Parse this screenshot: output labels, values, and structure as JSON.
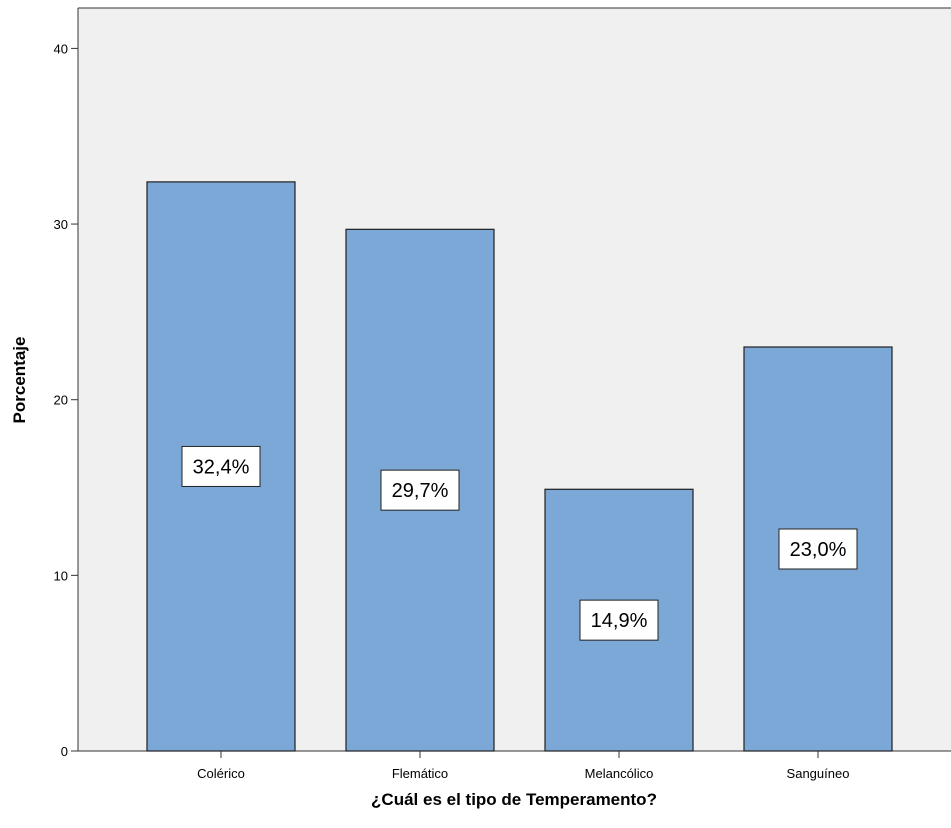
{
  "chart_data": {
    "type": "bar",
    "title": "",
    "xlabel": "¿Cuál es el tipo de Temperamento?",
    "ylabel": "Porcentaje",
    "categories": [
      "Colérico",
      "Flemático",
      "Melancólico",
      "Sanguíneo"
    ],
    "values": [
      32.4,
      29.7,
      14.9,
      23.0
    ],
    "data_labels": [
      "32,4%",
      "29,7%",
      "14,9%",
      "23,0%"
    ],
    "yticks": [
      "0",
      "10",
      "20",
      "30",
      "40"
    ],
    "ytick_values": [
      0,
      10,
      20,
      30,
      40
    ],
    "ylim": [
      0,
      42.3
    ],
    "grid": false,
    "legend": "none",
    "colors": {
      "bar_fill": "#7BA8D6",
      "bar_stroke": "#1F1F1F",
      "plot_bg": "#F0F0F0",
      "axis": "#333333",
      "label_box_bg": "#FFFFFF"
    }
  }
}
